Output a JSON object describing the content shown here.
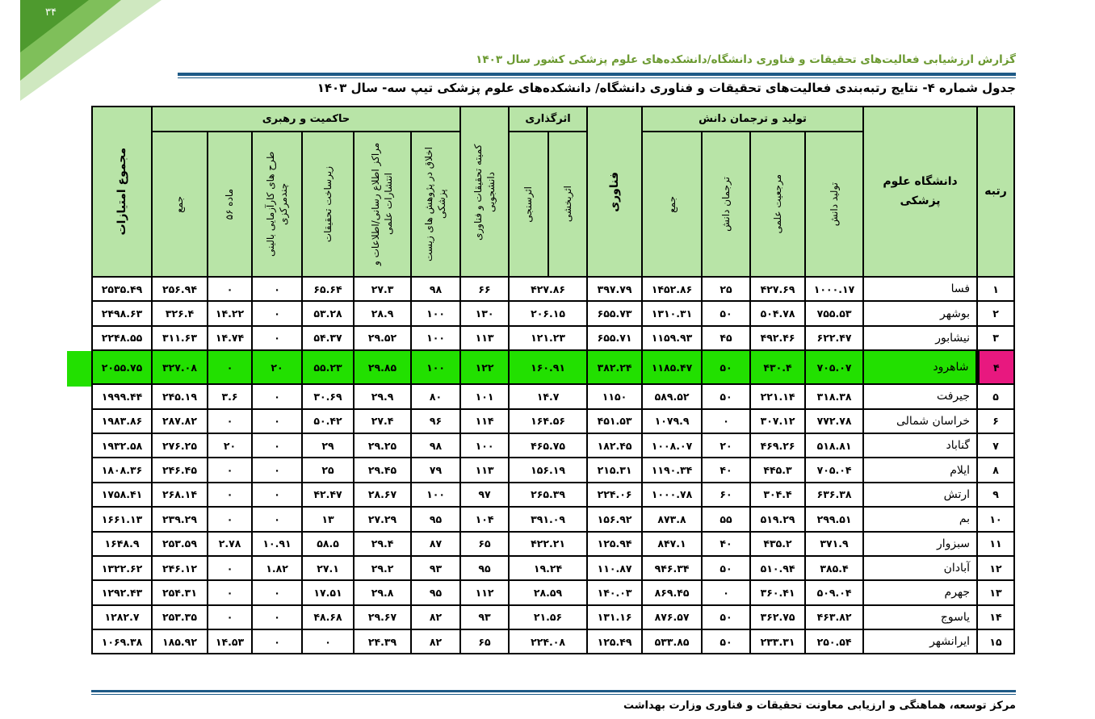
{
  "page_number": "۳۴",
  "header": {
    "title": "گزارش ارزشیابی فعالیت‌های تحقیقات و فناوری دانشگاه/دانشکده‌های علوم پزشکی کشور سال ۱۴۰۳"
  },
  "table": {
    "title": "جدول شماره ۴- نتایج رتبه‌بندی فعالیت‌های تحقیقات و فناوری دانشگاه/ دانشکده‌های علوم پزشکی تیپ سه- سال ۱۴۰۳",
    "headers": {
      "rank": "رتبه",
      "university": "دانشگاه علوم پزشکی",
      "knowledge": "تولید و ترجمان دانش",
      "production": "تولید دانش",
      "reference": "مرجعیت علمی",
      "translation": "ترجمان دانش",
      "knowledge_sum": "جمع",
      "technology": "فناوری",
      "impact": "اثرگذاری",
      "effectiveness": "اثربخشی",
      "assessment": "اثرسنجی",
      "student_committee": "کمیته تحقیقات و فناوری دانشجویی",
      "governance": "حاکمیت و رهبری",
      "ethics": "اخلاق در پژوهش های زیست پزشکی",
      "info_centers": "مراکز اطلاع رسانی/اطلاعات و انتشارات علمی",
      "infrastructure": "زیرساخت تحقیقات",
      "trials": "طرح های کارآزمایی بالینی چندمرکزی",
      "article56": "ماده ۵۶",
      "governance_sum": "جمع",
      "total": "مجموع امتیازات"
    },
    "rows": [
      [
        "۱",
        "فسا",
        "۱۰۰۰.۱۷",
        "۴۲۷.۶۹",
        "۲۵",
        "۱۴۵۲.۸۶",
        "۳۹۷.۷۹",
        "۴۲۷.۸۶",
        "۶۶",
        "۹۸",
        "۲۷.۳",
        "۶۵.۶۴",
        "۰",
        "۰",
        "۲۵۶.۹۴",
        "۲۵۳۵.۴۹"
      ],
      [
        "۲",
        "بوشهر",
        "۷۵۵.۵۳",
        "۵۰۴.۷۸",
        "۵۰",
        "۱۳۱۰.۳۱",
        "۶۵۵.۷۳",
        "۲۰۶.۱۵",
        "۱۳۰",
        "۱۰۰",
        "۲۸.۹",
        "۵۳.۲۸",
        "۰",
        "۱۴.۲۲",
        "۳۲۶.۴",
        "۲۴۹۸.۶۳"
      ],
      [
        "۳",
        "نیشابور",
        "۶۲۲.۴۷",
        "۴۹۲.۴۶",
        "۴۵",
        "۱۱۵۹.۹۳",
        "۶۵۵.۷۱",
        "۱۲۱.۲۳",
        "۱۱۳",
        "۱۰۰",
        "۲۹.۵۲",
        "۵۴.۳۷",
        "۰",
        "۱۴.۷۴",
        "۳۱۱.۶۳",
        "۲۲۴۸.۵۵"
      ],
      [
        "۴",
        "شاهرود",
        "۷۰۵.۰۷",
        "۴۳۰.۴",
        "۵۰",
        "۱۱۸۵.۴۷",
        "۳۸۲.۲۴",
        "۱۶۰.۹۱",
        "۱۲۲",
        "۱۰۰",
        "۲۹.۸۵",
        "۵۵.۲۳",
        "۲۰",
        "۰",
        "۳۲۷.۰۸",
        "۲۰۵۵.۷۵"
      ],
      [
        "۵",
        "جیرفت",
        "۳۱۸.۳۸",
        "۲۲۱.۱۴",
        "۵۰",
        "۵۸۹.۵۲",
        "۱۱۵۰",
        "۱۴.۷",
        "۱۰۱",
        "۸۰",
        "۲۹.۹",
        "۳۰.۶۹",
        "۰",
        "۳.۶",
        "۲۴۵.۱۹",
        "۱۹۹۹.۴۴"
      ],
      [
        "۶",
        "خراسان شمالی",
        "۷۷۲.۷۸",
        "۳۰۷.۱۲",
        "۰",
        "۱۰۷۹.۹",
        "۴۵۱.۵۳",
        "۱۶۴.۵۶",
        "۱۱۴",
        "۹۶",
        "۲۷.۴",
        "۵۰.۴۲",
        "۰",
        "۰",
        "۲۸۷.۸۲",
        "۱۹۸۳.۸۶"
      ],
      [
        "۷",
        "گناباد",
        "۵۱۸.۸۱",
        "۴۶۹.۲۶",
        "۲۰",
        "۱۰۰۸.۰۷",
        "۱۸۲.۴۵",
        "۴۶۵.۷۵",
        "۱۰۰",
        "۹۸",
        "۲۹.۲۵",
        "۲۹",
        "۰",
        "۲۰",
        "۲۷۶.۲۵",
        "۱۹۳۲.۵۸"
      ],
      [
        "۸",
        "ایلام",
        "۷۰۵.۰۴",
        "۴۴۵.۳",
        "۴۰",
        "۱۱۹۰.۳۴",
        "۲۱۵.۳۱",
        "۱۵۶.۱۹",
        "۱۱۳",
        "۷۹",
        "۲۹.۴۵",
        "۲۵",
        "۰",
        "۰",
        "۲۴۶.۴۵",
        "۱۸۰۸.۳۶"
      ],
      [
        "۹",
        "ارتش",
        "۶۳۶.۳۸",
        "۳۰۴.۴",
        "۶۰",
        "۱۰۰۰.۷۸",
        "۲۲۴.۰۶",
        "۲۶۵.۳۹",
        "۹۷",
        "۱۰۰",
        "۲۸.۶۷",
        "۴۲.۴۷",
        "۰",
        "۰",
        "۲۶۸.۱۴",
        "۱۷۵۸.۴۱"
      ],
      [
        "۱۰",
        "بم",
        "۲۹۹.۵۱",
        "۵۱۹.۲۹",
        "۵۵",
        "۸۷۳.۸",
        "۱۵۶.۹۲",
        "۳۹۱.۰۹",
        "۱۰۴",
        "۹۵",
        "۲۷.۲۹",
        "۱۳",
        "۰",
        "۰",
        "۲۳۹.۲۹",
        "۱۶۶۱.۱۳"
      ],
      [
        "۱۱",
        "سبزوار",
        "۳۷۱.۹",
        "۴۳۵.۲",
        "۴۰",
        "۸۴۷.۱",
        "۱۲۵.۹۴",
        "۴۲۲.۲۱",
        "۶۵",
        "۸۷",
        "۲۹.۴",
        "۵۸.۵",
        "۱۰.۹۱",
        "۲.۷۸",
        "۲۵۳.۵۹",
        "۱۶۴۸.۹"
      ],
      [
        "۱۲",
        "آبادان",
        "۳۸۵.۴",
        "۵۱۰.۹۴",
        "۵۰",
        "۹۴۶.۳۴",
        "۱۱۰.۸۷",
        "۱۹.۲۴",
        "۹۵",
        "۹۳",
        "۲۹.۲",
        "۲۷.۱",
        "۱.۸۲",
        "۰",
        "۲۴۶.۱۲",
        "۱۳۲۲.۶۲"
      ],
      [
        "۱۳",
        "جهرم",
        "۵۰۹.۰۴",
        "۳۶۰.۴۱",
        "۰",
        "۸۶۹.۴۵",
        "۱۴۰.۰۳",
        "۲۸.۵۹",
        "۱۱۲",
        "۹۵",
        "۲۹.۸",
        "۱۷.۵۱",
        "۰",
        "۰",
        "۲۵۴.۳۱",
        "۱۲۹۲.۴۳"
      ],
      [
        "۱۴",
        "یاسوج",
        "۴۶۳.۸۲",
        "۳۶۲.۷۵",
        "۵۰",
        "۸۷۶.۵۷",
        "۱۳۱.۱۶",
        "۲۱.۵۶",
        "۹۳",
        "۸۲",
        "۲۹.۶۷",
        "۴۸.۶۸",
        "۰",
        "۰",
        "۲۵۳.۳۵",
        "۱۲۸۲.۷"
      ],
      [
        "۱۵",
        "ایرانشهر",
        "۲۵۰.۵۴",
        "۲۳۳.۳۱",
        "۵۰",
        "۵۳۳.۸۵",
        "۱۲۵.۴۹",
        "۲۲۴.۰۸",
        "۶۵",
        "۸۲",
        "۲۴.۳۹",
        "۰",
        "۰",
        "۱۴.۵۳",
        "۱۸۵.۹۲",
        "۱۰۶۹.۳۸"
      ]
    ]
  },
  "footer": {
    "text": "مرکز توسعه، هماهنگی و ارزیابی معاونت تحقیقات و فناوری وزارت بهداشت"
  }
}
